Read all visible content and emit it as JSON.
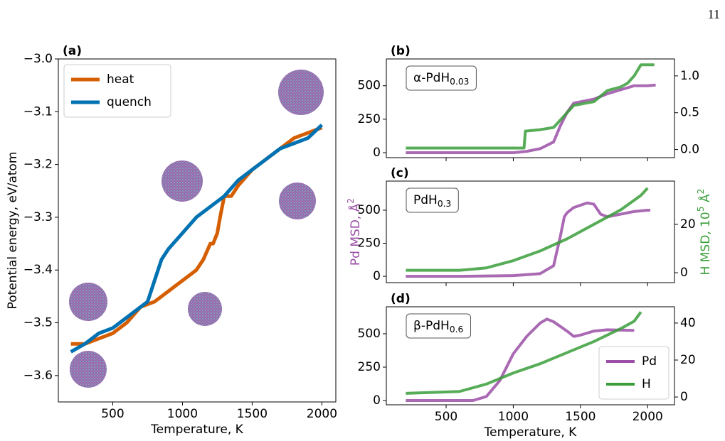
{
  "page_number": "11",
  "chart_data": [
    {
      "type": "line",
      "panel_label": "(a)",
      "xlabel": "Temperature, K",
      "ylabel": [
        {
          "text": "Potential energy, eV/atom"
        }
      ],
      "xlim": [
        110,
        2100
      ],
      "ylim": [
        -3.65,
        -3.0
      ],
      "xticks": [
        500,
        1000,
        1500,
        2000
      ],
      "yticks": [
        {
          "value": -3.0,
          "label": "−3.0"
        },
        {
          "value": -3.1,
          "label": "−3.1"
        },
        {
          "value": -3.2,
          "label": "−3.2"
        },
        {
          "value": -3.3,
          "label": "−3.3"
        },
        {
          "value": -3.4,
          "label": "−3.4"
        },
        {
          "value": -3.5,
          "label": "−3.5"
        },
        {
          "value": -3.6,
          "label": "−3.6"
        }
      ],
      "legend": "upper left",
      "series": [
        {
          "name": "heat",
          "color": "#d55e00",
          "x": [
            200,
            300,
            400,
            500,
            600,
            700,
            800,
            900,
            1000,
            1100,
            1150,
            1200,
            1220,
            1250,
            1270,
            1300,
            1350,
            1400,
            1500,
            1600,
            1700,
            1800,
            1900,
            2000
          ],
          "values": [
            -3.54,
            -3.54,
            -3.53,
            -3.52,
            -3.5,
            -3.47,
            -3.46,
            -3.44,
            -3.42,
            -3.4,
            -3.38,
            -3.35,
            -3.35,
            -3.33,
            -3.3,
            -3.26,
            -3.26,
            -3.24,
            -3.21,
            -3.19,
            -3.17,
            -3.15,
            -3.14,
            -3.13
          ]
        },
        {
          "name": "quench",
          "color": "#0072b2",
          "x": [
            200,
            300,
            400,
            500,
            600,
            700,
            750,
            800,
            850,
            900,
            1000,
            1100,
            1200,
            1300,
            1400,
            1500,
            1600,
            1700,
            1800,
            1900,
            2000
          ],
          "values": [
            -3.555,
            -3.54,
            -3.52,
            -3.51,
            -3.49,
            -3.47,
            -3.46,
            -3.42,
            -3.38,
            -3.36,
            -3.33,
            -3.3,
            -3.28,
            -3.26,
            -3.23,
            -3.21,
            -3.19,
            -3.17,
            -3.16,
            -3.15,
            -3.125
          ]
        }
      ]
    },
    {
      "type": "line",
      "panel_label": "(b)",
      "xticklabels": false,
      "annotation": [
        {
          "text": "α-PdH"
        },
        {
          "sub": "0.03"
        }
      ],
      "xlim": [
        55,
        2200
      ],
      "ylim": [
        -37,
        700
      ],
      "y2lim": [
        -0.11,
        1.23
      ],
      "xticks": [
        500,
        1000,
        1500,
        2000
      ],
      "yticks": [
        0,
        250,
        500
      ],
      "y2ticks": [
        {
          "value": 0,
          "label": "0.0"
        },
        0.5,
        {
          "value": 1,
          "label": "1.0"
        }
      ],
      "series": [
        {
          "color": "#9b4fa6",
          "x": [
            200,
            600,
            1000,
            1100,
            1200,
            1300,
            1350,
            1400,
            1450,
            1500,
            1600,
            1700,
            1800,
            1900,
            2000,
            2060
          ],
          "values": [
            0,
            0,
            0,
            10,
            30,
            80,
            200,
            300,
            370,
            380,
            400,
            440,
            470,
            500,
            500,
            505
          ]
        },
        {
          "color": "#3a9e3a",
          "axis": "y2",
          "x": [
            200,
            600,
            1000,
            1080,
            1090,
            1200,
            1300,
            1350,
            1450,
            1600,
            1700,
            1800,
            1850,
            1900,
            1950,
            2050
          ],
          "values": [
            0.02,
            0.02,
            0.02,
            0.02,
            0.25,
            0.27,
            0.3,
            0.4,
            0.6,
            0.65,
            0.8,
            0.85,
            0.9,
            1.0,
            1.15,
            1.15
          ]
        }
      ]
    },
    {
      "type": "line",
      "panel_label": "(c)",
      "xticklabels": false,
      "annotation": [
        {
          "text": "PdH"
        },
        {
          "sub": "0.3"
        }
      ],
      "ylabel": [
        {
          "text": "Pd MSD, Å"
        },
        {
          "sup": "2"
        }
      ],
      "y2label": [
        {
          "text": "H MSD, 10"
        },
        {
          "sup": "5"
        },
        {
          "text": " Å"
        },
        {
          "sup": "2"
        }
      ],
      "xlim": [
        55,
        2200
      ],
      "ylim": [
        -48,
        720
      ],
      "y2lim": [
        -4.1,
        37.9
      ],
      "xticks": [
        500,
        1000,
        1500,
        2000
      ],
      "yticks": [
        0,
        250,
        500
      ],
      "y2ticks": [
        0,
        20
      ],
      "series": [
        {
          "color": "#9b4fa6",
          "x": [
            200,
            600,
            1000,
            1200,
            1300,
            1350,
            1380,
            1400,
            1450,
            1550,
            1600,
            1650,
            1700,
            1800,
            1900,
            2000,
            2020
          ],
          "values": [
            0,
            0,
            5,
            20,
            80,
            300,
            450,
            480,
            520,
            555,
            545,
            470,
            450,
            470,
            490,
            500,
            500
          ]
        },
        {
          "color": "#3a9e3a",
          "axis": "y2",
          "x": [
            200,
            600,
            800,
            1000,
            1200,
            1400,
            1600,
            1800,
            1950,
            2000
          ],
          "values": [
            1,
            1,
            2,
            5,
            9,
            14,
            20,
            26,
            32,
            35
          ]
        }
      ]
    },
    {
      "type": "line",
      "panel_label": "(d)",
      "xlabel": "Temperature, K",
      "annotation": [
        {
          "text": "β-PdH"
        },
        {
          "sub": "0.6"
        }
      ],
      "legend": "lower right",
      "xlim": [
        55,
        2200
      ],
      "ylim": [
        -32,
        702
      ],
      "y2lim": [
        -4.2,
        48.8
      ],
      "xticks": [
        500,
        1000,
        1500,
        2000
      ],
      "yticks": [
        0,
        250,
        500
      ],
      "y2ticks": [
        0,
        20,
        40
      ],
      "series": [
        {
          "name": "Pd",
          "color": "#9b4fa6",
          "x": [
            200,
            700,
            800,
            900,
            1000,
            1100,
            1200,
            1250,
            1300,
            1400,
            1450,
            1500,
            1600,
            1700,
            1900
          ],
          "values": [
            0,
            0,
            30,
            150,
            350,
            480,
            580,
            610,
            590,
            520,
            480,
            490,
            520,
            530,
            525
          ]
        },
        {
          "name": "H",
          "color": "#3a9e3a",
          "axis": "y2",
          "x": [
            200,
            600,
            800,
            1000,
            1200,
            1400,
            1600,
            1800,
            1900,
            1950
          ],
          "values": [
            2,
            3,
            7,
            13,
            18,
            24,
            30,
            37,
            41,
            46
          ]
        }
      ]
    }
  ]
}
